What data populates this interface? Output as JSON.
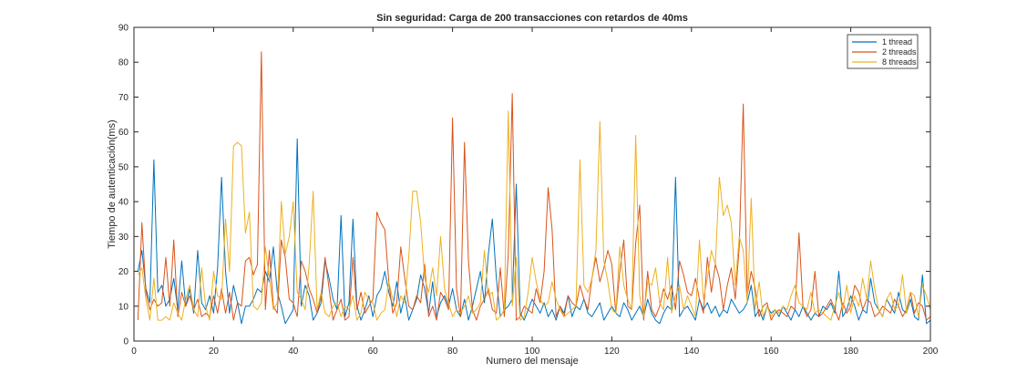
{
  "chart_data": {
    "type": "line",
    "title": "Sin seguridad: Carga de 200 transacciones con retardos de 40ms",
    "xlabel": "Numero del mensaje",
    "ylabel": "Tiempo de autenticación(ms)",
    "xlim": [
      0,
      200
    ],
    "ylim": [
      0,
      90
    ],
    "xticks": [
      0,
      20,
      40,
      60,
      80,
      100,
      120,
      140,
      160,
      180,
      200
    ],
    "yticks": [
      0,
      10,
      20,
      30,
      40,
      50,
      60,
      70,
      80,
      90
    ],
    "xtick_labels": [
      "0",
      "20",
      "40",
      "60",
      "80",
      "100",
      "120",
      "140",
      "160",
      "180",
      "200"
    ],
    "ytick_labels": [
      "0",
      "10",
      "20",
      "30",
      "40",
      "50",
      "60",
      "70",
      "80",
      "90"
    ],
    "grid": false,
    "legend_position": "top-right",
    "x": [
      1,
      2,
      3,
      4,
      5,
      6,
      7,
      8,
      9,
      10,
      11,
      12,
      13,
      14,
      15,
      16,
      17,
      18,
      19,
      20,
      21,
      22,
      23,
      24,
      25,
      26,
      27,
      28,
      29,
      30,
      31,
      32,
      33,
      34,
      35,
      36,
      37,
      38,
      39,
      40,
      41,
      42,
      43,
      44,
      45,
      46,
      47,
      48,
      49,
      50,
      51,
      52,
      53,
      54,
      55,
      56,
      57,
      58,
      59,
      60,
      61,
      62,
      63,
      64,
      65,
      66,
      67,
      68,
      69,
      70,
      71,
      72,
      73,
      74,
      75,
      76,
      77,
      78,
      79,
      80,
      81,
      82,
      83,
      84,
      85,
      86,
      87,
      88,
      89,
      90,
      91,
      92,
      93,
      94,
      95,
      96,
      97,
      98,
      99,
      100,
      101,
      102,
      103,
      104,
      105,
      106,
      107,
      108,
      109,
      110,
      111,
      112,
      113,
      114,
      115,
      116,
      117,
      118,
      119,
      120,
      121,
      122,
      123,
      124,
      125,
      126,
      127,
      128,
      129,
      130,
      131,
      132,
      133,
      134,
      135,
      136,
      137,
      138,
      139,
      140,
      141,
      142,
      143,
      144,
      145,
      146,
      147,
      148,
      149,
      150,
      151,
      152,
      153,
      154,
      155,
      156,
      157,
      158,
      159,
      160,
      161,
      162,
      163,
      164,
      165,
      166,
      167,
      168,
      169,
      170,
      171,
      172,
      173,
      174,
      175,
      176,
      177,
      178,
      179,
      180,
      181,
      182,
      183,
      184,
      185,
      186,
      187,
      188,
      189,
      190,
      191,
      192,
      193,
      194,
      195,
      196,
      197,
      198,
      199,
      200
    ],
    "series": [
      {
        "name": "1 thread",
        "color": "#0072BD",
        "values": [
          20,
          26,
          15,
          11,
          52,
          14,
          16,
          10,
          12,
          18,
          9,
          23,
          10,
          15,
          8,
          26,
          11,
          9,
          13,
          8,
          21,
          47,
          20,
          8,
          16,
          11,
          5,
          10,
          10,
          12,
          15,
          14,
          20,
          17,
          27,
          14,
          10,
          5,
          7,
          9,
          58,
          10,
          16,
          13,
          6,
          8,
          11,
          23,
          18,
          12,
          9,
          36,
          7,
          11,
          35,
          10,
          6,
          9,
          13,
          7,
          13,
          15,
          20,
          14,
          10,
          17,
          8,
          13,
          6,
          9,
          12,
          19,
          15,
          8,
          17,
          7,
          11,
          13,
          10,
          15,
          9,
          7,
          12,
          6,
          10,
          15,
          20,
          11,
          25,
          35,
          18,
          7,
          9,
          10,
          12,
          45,
          8,
          6,
          9,
          12,
          10,
          8,
          11,
          7,
          9,
          6,
          10,
          8,
          13,
          7,
          10,
          9,
          12,
          8,
          7,
          9,
          11,
          6,
          8,
          10,
          8,
          7,
          11,
          9,
          6,
          8,
          10,
          7,
          12,
          8,
          6,
          5,
          8,
          10,
          9,
          47,
          7,
          9,
          10,
          8,
          6,
          12,
          9,
          11,
          8,
          10,
          7,
          9,
          8,
          12,
          10,
          8,
          9,
          11,
          16,
          7,
          9,
          6,
          10,
          8,
          9,
          7,
          10,
          8,
          6,
          9,
          7,
          10,
          8,
          6,
          8,
          7,
          10,
          9,
          11,
          8,
          20,
          7,
          9,
          13,
          10,
          6,
          9,
          8,
          18,
          11,
          9,
          7,
          12,
          10,
          8,
          14,
          9,
          8,
          12,
          7,
          6,
          19,
          5,
          6
        ]
      },
      {
        "name": "2 threads",
        "color": "#D95319",
        "values": [
          6,
          34,
          14,
          9,
          12,
          10,
          11,
          24,
          10,
          29,
          7,
          14,
          10,
          13,
          9,
          12,
          7,
          8,
          7,
          13,
          8,
          15,
          8,
          14,
          6,
          11,
          10,
          23,
          24,
          19,
          22,
          83,
          9,
          26,
          10,
          8,
          29,
          24,
          12,
          11,
          7,
          23,
          20,
          15,
          12,
          8,
          13,
          24,
          15,
          6,
          9,
          12,
          6,
          7,
          24,
          9,
          14,
          8,
          10,
          12,
          37,
          34,
          32,
          17,
          8,
          11,
          27,
          18,
          10,
          9,
          13,
          11,
          22,
          7,
          10,
          6,
          14,
          12,
          9,
          64,
          15,
          7,
          57,
          23,
          9,
          6,
          10,
          12,
          15,
          9,
          8,
          21,
          7,
          25,
          71,
          6,
          7,
          10,
          9,
          8,
          15,
          11,
          20,
          44,
          32,
          7,
          10,
          7,
          13,
          11,
          10,
          16,
          12,
          9,
          18,
          24,
          17,
          21,
          26,
          22,
          8,
          20,
          29,
          10,
          9,
          28,
          39,
          6,
          20,
          9,
          7,
          10,
          15,
          12,
          16,
          9,
          23,
          19,
          14,
          13,
          18,
          12,
          8,
          24,
          14,
          22,
          18,
          9,
          16,
          21,
          12,
          27,
          68,
          13,
          20,
          15,
          7,
          10,
          11,
          6,
          8,
          9,
          8,
          7,
          10,
          9,
          31,
          10,
          7,
          9,
          20,
          7,
          8,
          10,
          12,
          9,
          6,
          11,
          8,
          10,
          16,
          14,
          9,
          12,
          11,
          7,
          8,
          10,
          9,
          8,
          12,
          10,
          7,
          9,
          14,
          8,
          11,
          10,
          6,
          7
        ]
      },
      {
        "name": "8 threads",
        "color": "#EDB120",
        "values": [
          19,
          21,
          12,
          6,
          18,
          6,
          6,
          7,
          6,
          11,
          8,
          6,
          12,
          16,
          9,
          7,
          21,
          10,
          6,
          20,
          13,
          12,
          35,
          20,
          56,
          57,
          56,
          31,
          37,
          10,
          9,
          11,
          27,
          18,
          9,
          11,
          40,
          25,
          30,
          40,
          14,
          12,
          9,
          22,
          43,
          9,
          14,
          8,
          7,
          10,
          11,
          7,
          10,
          9,
          13,
          6,
          8,
          14,
          12,
          11,
          6,
          8,
          9,
          17,
          12,
          7,
          13,
          11,
          24,
          43,
          43,
          34,
          18,
          14,
          21,
          13,
          30,
          15,
          11,
          7,
          9,
          8,
          10,
          13,
          8,
          9,
          11,
          26,
          13,
          14,
          6,
          7,
          9,
          66,
          10,
          24,
          6,
          7,
          14,
          24,
          17,
          12,
          10,
          11,
          17,
          12,
          9,
          7,
          8,
          9,
          10,
          52,
          16,
          14,
          18,
          26,
          63,
          23,
          17,
          9,
          8,
          27,
          16,
          12,
          9,
          59,
          13,
          7,
          17,
          16,
          21,
          11,
          9,
          24,
          8,
          13,
          16,
          9,
          13,
          10,
          7,
          29,
          12,
          18,
          26,
          22,
          47,
          36,
          39,
          34,
          16,
          30,
          26,
          11,
          41,
          9,
          17,
          7,
          10,
          7,
          9,
          8,
          10,
          9,
          13,
          16,
          11,
          10,
          9,
          14,
          8,
          9,
          8,
          7,
          6,
          10,
          14,
          9,
          16,
          8,
          13,
          10,
          18,
          12,
          23,
          15,
          9,
          7,
          12,
          14,
          9,
          10,
          19,
          8,
          14,
          13,
          7,
          16,
          13,
          9
        ]
      }
    ]
  }
}
